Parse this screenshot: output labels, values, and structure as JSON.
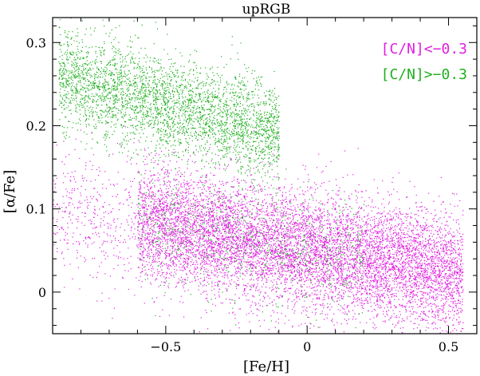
{
  "chart_data": {
    "type": "scatter",
    "title": "upRGB",
    "xlabel": "[Fe/H]",
    "ylabel": "[α/Fe]",
    "xlim": [
      -0.9,
      0.6
    ],
    "ylim": [
      -0.05,
      0.33
    ],
    "x_ticks": [
      -0.5,
      0,
      0.5
    ],
    "x_tick_labels": [
      "−0.5",
      "0",
      "0.5"
    ],
    "y_ticks": [
      0,
      0.1,
      0.2,
      0.3
    ],
    "y_tick_labels": [
      "0",
      "0.1",
      "0.2",
      "0.3"
    ],
    "grid": false,
    "legend_position": "top-right",
    "series": [
      {
        "name": "[C/N]<−0.3",
        "color": "#e020e0",
        "clusters": [
          {
            "x_range": [
              -0.6,
              0.55
            ],
            "y_center_at_xmin": 0.085,
            "y_center_at_xmax": 0.02,
            "y_spread": 0.035,
            "n": 9000
          },
          {
            "x_range": [
              -0.9,
              -0.6
            ],
            "y_center_at_xmin": 0.1,
            "y_center_at_xmax": 0.085,
            "y_spread": 0.04,
            "n": 400
          }
        ]
      },
      {
        "name": "[C/N]>−0.3",
        "color": "#20b020",
        "clusters": [
          {
            "x_range": [
              -0.88,
              -0.1
            ],
            "y_center_at_xmin": 0.26,
            "y_center_at_xmax": 0.19,
            "y_spread": 0.03,
            "n": 3500
          },
          {
            "x_range": [
              -0.6,
              0.2
            ],
            "y_center_at_xmin": 0.085,
            "y_center_at_xmax": 0.04,
            "y_spread": 0.035,
            "n": 700
          }
        ]
      }
    ]
  }
}
